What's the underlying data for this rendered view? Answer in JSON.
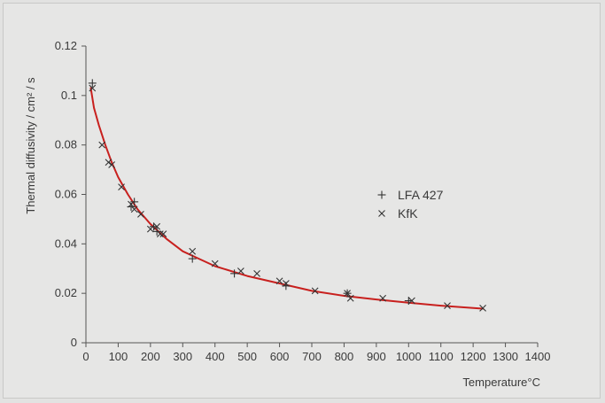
{
  "chart_data": {
    "type": "scatter",
    "title": "",
    "xlabel": "Temperature°C",
    "ylabel": "Thermal diffusivity / cm² / s",
    "xlim": [
      0,
      1400
    ],
    "ylim": [
      0,
      0.12
    ],
    "x_ticks": [
      "0",
      "100",
      "200",
      "300",
      "400",
      "500",
      "600",
      "700",
      "800",
      "900",
      "1000",
      "1100",
      "1200",
      "1300",
      "1400"
    ],
    "y_ticks": [
      "0",
      "0.02",
      "0.04",
      "0.06",
      "0.08",
      "0.1",
      "0.12"
    ],
    "grid": false,
    "legend_position": "center-right",
    "series": [
      {
        "name": "LFA 427",
        "marker": "plus",
        "color": "#333333",
        "x": [
          20,
          140,
          150,
          210,
          220,
          330,
          460,
          620,
          810,
          1000
        ],
        "y": [
          0.105,
          0.055,
          0.057,
          0.047,
          0.045,
          0.034,
          0.028,
          0.023,
          0.02,
          0.017
        ]
      },
      {
        "name": "KfK",
        "marker": "x",
        "color": "#333333",
        "x": [
          20,
          50,
          70,
          80,
          110,
          140,
          150,
          170,
          200,
          220,
          230,
          240,
          330,
          400,
          480,
          530,
          600,
          620,
          710,
          810,
          820,
          920,
          1010,
          1120,
          1230
        ],
        "y": [
          0.103,
          0.08,
          0.073,
          0.072,
          0.063,
          0.056,
          0.054,
          0.052,
          0.046,
          0.047,
          0.044,
          0.044,
          0.037,
          0.032,
          0.029,
          0.028,
          0.025,
          0.024,
          0.021,
          0.02,
          0.018,
          0.018,
          0.017,
          0.015,
          0.014
        ]
      }
    ],
    "fit_curve": {
      "color": "#c8201e",
      "x": [
        15,
        25,
        40,
        60,
        80,
        100,
        130,
        160,
        200,
        250,
        300,
        350,
        400,
        500,
        600,
        700,
        800,
        900,
        1000,
        1100,
        1230
      ],
      "y": [
        0.103,
        0.095,
        0.088,
        0.08,
        0.073,
        0.067,
        0.06,
        0.054,
        0.048,
        0.042,
        0.037,
        0.034,
        0.031,
        0.027,
        0.024,
        0.021,
        0.019,
        0.0175,
        0.0162,
        0.015,
        0.0138
      ]
    }
  }
}
